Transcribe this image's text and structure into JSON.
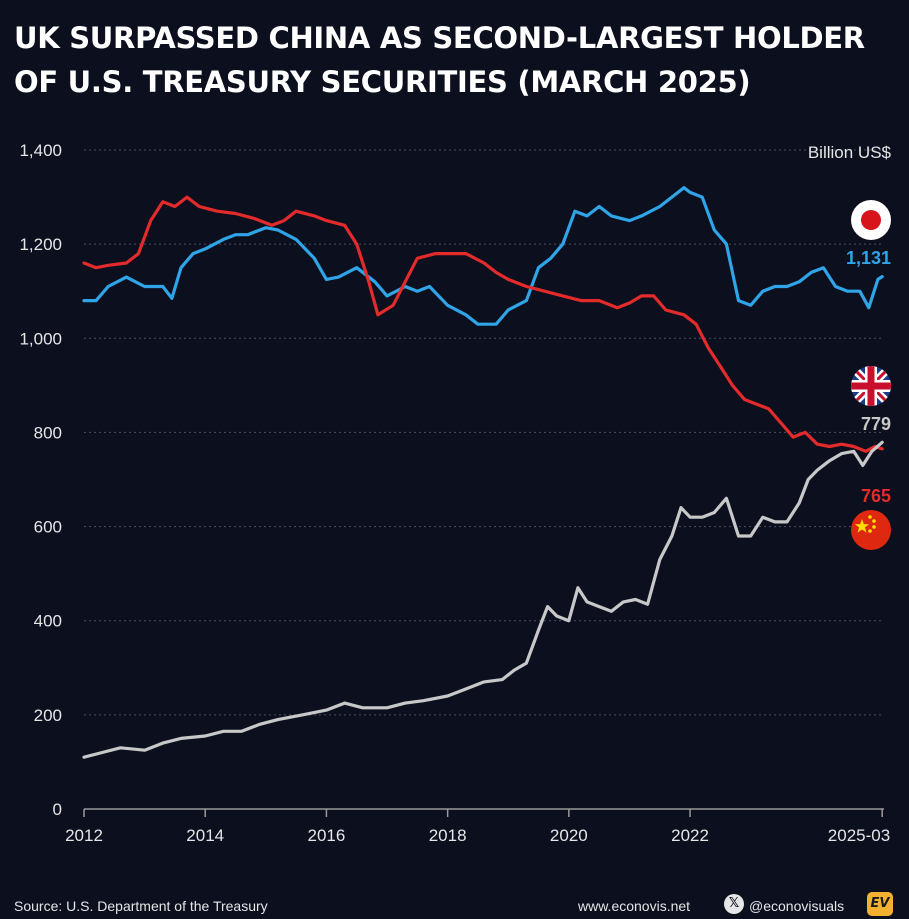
{
  "title": "UK SURPASSED CHINA AS SECOND-LARGEST HOLDER OF U.S. TREASURY SECURITIES (MARCH 2025)",
  "chart_data": {
    "type": "line",
    "unit_label": "Billion US$",
    "xlabel": "",
    "ylabel": "",
    "ylim": [
      0,
      1400
    ],
    "xlim": [
      2012,
      2025.2
    ],
    "yticks": [
      0,
      200,
      400,
      600,
      800,
      1000,
      1200,
      1400
    ],
    "ytick_labels": [
      "0",
      "200",
      "400",
      "600",
      "800",
      "1,000",
      "1,200",
      "1,400"
    ],
    "xticks": [
      2012,
      2014,
      2016,
      2018,
      2020,
      2022,
      2025.17
    ],
    "xtick_labels": [
      "2012",
      "2014",
      "2016",
      "2018",
      "2020",
      "2022",
      "2025-03"
    ],
    "grid": true,
    "legend": "none",
    "series": [
      {
        "key": "japan",
        "color": "#2fa4e7",
        "end_label": "1,131",
        "flag": "japan-flag-icon",
        "points": [
          [
            2012.0,
            1080
          ],
          [
            2012.2,
            1080
          ],
          [
            2012.4,
            1110
          ],
          [
            2012.7,
            1130
          ],
          [
            2013.0,
            1110
          ],
          [
            2013.3,
            1110
          ],
          [
            2013.45,
            1085
          ],
          [
            2013.6,
            1150
          ],
          [
            2013.8,
            1180
          ],
          [
            2014.0,
            1190
          ],
          [
            2014.3,
            1210
          ],
          [
            2014.5,
            1220
          ],
          [
            2014.7,
            1220
          ],
          [
            2015.0,
            1235
          ],
          [
            2015.2,
            1230
          ],
          [
            2015.5,
            1210
          ],
          [
            2015.8,
            1170
          ],
          [
            2016.0,
            1125
          ],
          [
            2016.2,
            1130
          ],
          [
            2016.5,
            1150
          ],
          [
            2016.8,
            1120
          ],
          [
            2017.0,
            1090
          ],
          [
            2017.3,
            1110
          ],
          [
            2017.5,
            1100
          ],
          [
            2017.7,
            1110
          ],
          [
            2018.0,
            1070
          ],
          [
            2018.3,
            1050
          ],
          [
            2018.5,
            1030
          ],
          [
            2018.8,
            1030
          ],
          [
            2019.0,
            1060
          ],
          [
            2019.3,
            1080
          ],
          [
            2019.5,
            1150
          ],
          [
            2019.7,
            1170
          ],
          [
            2019.9,
            1200
          ],
          [
            2020.1,
            1270
          ],
          [
            2020.3,
            1260
          ],
          [
            2020.5,
            1280
          ],
          [
            2020.7,
            1260
          ],
          [
            2021.0,
            1250
          ],
          [
            2021.2,
            1260
          ],
          [
            2021.5,
            1280
          ],
          [
            2021.7,
            1300
          ],
          [
            2021.9,
            1320
          ],
          [
            2022.0,
            1310
          ],
          [
            2022.2,
            1300
          ],
          [
            2022.4,
            1230
          ],
          [
            2022.6,
            1200
          ],
          [
            2022.8,
            1080
          ],
          [
            2023.0,
            1070
          ],
          [
            2023.2,
            1100
          ],
          [
            2023.4,
            1110
          ],
          [
            2023.6,
            1110
          ],
          [
            2023.8,
            1120
          ],
          [
            2024.0,
            1140
          ],
          [
            2024.2,
            1150
          ],
          [
            2024.4,
            1110
          ],
          [
            2024.6,
            1100
          ],
          [
            2024.8,
            1100
          ],
          [
            2024.95,
            1065
          ],
          [
            2025.1,
            1125
          ],
          [
            2025.17,
            1131
          ]
        ]
      },
      {
        "key": "china",
        "color": "#e32b2b",
        "end_label": "765",
        "flag": "china-flag-icon",
        "points": [
          [
            2012.0,
            1160
          ],
          [
            2012.2,
            1150
          ],
          [
            2012.4,
            1155
          ],
          [
            2012.7,
            1160
          ],
          [
            2012.9,
            1180
          ],
          [
            2013.1,
            1250
          ],
          [
            2013.3,
            1290
          ],
          [
            2013.5,
            1280
          ],
          [
            2013.7,
            1300
          ],
          [
            2013.9,
            1280
          ],
          [
            2014.2,
            1270
          ],
          [
            2014.5,
            1265
          ],
          [
            2014.8,
            1255
          ],
          [
            2015.1,
            1240
          ],
          [
            2015.3,
            1250
          ],
          [
            2015.5,
            1270
          ],
          [
            2015.8,
            1260
          ],
          [
            2016.0,
            1250
          ],
          [
            2016.3,
            1240
          ],
          [
            2016.5,
            1200
          ],
          [
            2016.7,
            1120
          ],
          [
            2016.85,
            1050
          ],
          [
            2017.1,
            1070
          ],
          [
            2017.3,
            1120
          ],
          [
            2017.5,
            1170
          ],
          [
            2017.8,
            1180
          ],
          [
            2018.0,
            1180
          ],
          [
            2018.3,
            1180
          ],
          [
            2018.6,
            1160
          ],
          [
            2018.8,
            1140
          ],
          [
            2019.0,
            1125
          ],
          [
            2019.3,
            1110
          ],
          [
            2019.6,
            1100
          ],
          [
            2019.9,
            1090
          ],
          [
            2020.2,
            1080
          ],
          [
            2020.5,
            1080
          ],
          [
            2020.8,
            1065
          ],
          [
            2021.0,
            1075
          ],
          [
            2021.2,
            1090
          ],
          [
            2021.4,
            1090
          ],
          [
            2021.6,
            1060
          ],
          [
            2021.9,
            1050
          ],
          [
            2022.1,
            1030
          ],
          [
            2022.3,
            980
          ],
          [
            2022.5,
            940
          ],
          [
            2022.7,
            900
          ],
          [
            2022.9,
            870
          ],
          [
            2023.1,
            860
          ],
          [
            2023.3,
            850
          ],
          [
            2023.5,
            820
          ],
          [
            2023.7,
            790
          ],
          [
            2023.9,
            800
          ],
          [
            2024.1,
            775
          ],
          [
            2024.3,
            770
          ],
          [
            2024.5,
            775
          ],
          [
            2024.7,
            770
          ],
          [
            2024.9,
            760
          ],
          [
            2025.05,
            770
          ],
          [
            2025.17,
            765
          ]
        ]
      },
      {
        "key": "uk",
        "color": "#c8c8c8",
        "end_label": "779",
        "flag": "uk-flag-icon",
        "points": [
          [
            2012.0,
            110
          ],
          [
            2012.3,
            120
          ],
          [
            2012.6,
            130
          ],
          [
            2013.0,
            125
          ],
          [
            2013.3,
            140
          ],
          [
            2013.6,
            150
          ],
          [
            2014.0,
            155
          ],
          [
            2014.3,
            165
          ],
          [
            2014.6,
            165
          ],
          [
            2014.9,
            180
          ],
          [
            2015.2,
            190
          ],
          [
            2015.6,
            200
          ],
          [
            2016.0,
            210
          ],
          [
            2016.3,
            225
          ],
          [
            2016.6,
            215
          ],
          [
            2017.0,
            215
          ],
          [
            2017.3,
            225
          ],
          [
            2017.6,
            230
          ],
          [
            2018.0,
            240
          ],
          [
            2018.3,
            255
          ],
          [
            2018.6,
            270
          ],
          [
            2018.9,
            275
          ],
          [
            2019.1,
            295
          ],
          [
            2019.3,
            310
          ],
          [
            2019.5,
            380
          ],
          [
            2019.65,
            430
          ],
          [
            2019.8,
            410
          ],
          [
            2020.0,
            400
          ],
          [
            2020.15,
            470
          ],
          [
            2020.3,
            440
          ],
          [
            2020.5,
            430
          ],
          [
            2020.7,
            420
          ],
          [
            2020.9,
            440
          ],
          [
            2021.1,
            445
          ],
          [
            2021.3,
            435
          ],
          [
            2021.5,
            530
          ],
          [
            2021.7,
            580
          ],
          [
            2021.85,
            640
          ],
          [
            2022.0,
            620
          ],
          [
            2022.2,
            620
          ],
          [
            2022.4,
            630
          ],
          [
            2022.6,
            660
          ],
          [
            2022.8,
            580
          ],
          [
            2023.0,
            580
          ],
          [
            2023.2,
            620
          ],
          [
            2023.4,
            610
          ],
          [
            2023.6,
            610
          ],
          [
            2023.8,
            650
          ],
          [
            2023.95,
            700
          ],
          [
            2024.1,
            720
          ],
          [
            2024.3,
            740
          ],
          [
            2024.5,
            755
          ],
          [
            2024.7,
            760
          ],
          [
            2024.85,
            730
          ],
          [
            2025.0,
            760
          ],
          [
            2025.17,
            779
          ]
        ]
      }
    ]
  },
  "footer": {
    "source": "Source: U.S. Department of the Treasury",
    "site": "www.econovis.net",
    "handle": "@econovisuals",
    "x_icon": "x-logo-icon",
    "ev_logo": "EV"
  }
}
